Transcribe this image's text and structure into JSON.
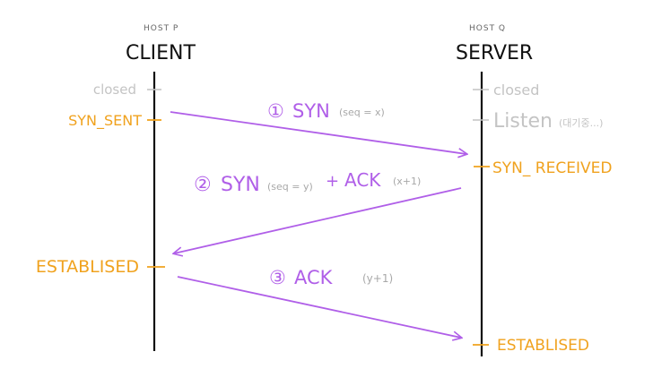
{
  "client": {
    "host": "HOST P",
    "role": "CLIENT"
  },
  "server": {
    "host": "HOST Q",
    "role": "SERVER"
  },
  "states": {
    "client_closed": "closed",
    "client_syn_sent": "SYN_SENT",
    "client_established": "ESTABLISED",
    "server_closed": "closed",
    "server_listen": "Listen",
    "server_listen_note": "(대기중...)",
    "server_syn_received": "SYN_ RECEIVED",
    "server_established": "ESTABLISED"
  },
  "messages": [
    {
      "number": "①",
      "label": "SYN",
      "detail": "(seq = x)"
    },
    {
      "number": "②",
      "label": "SYN",
      "detail_left": "(seq = y)",
      "plus": "+",
      "label2": "ACK",
      "detail": "(x+1)"
    },
    {
      "number": "③",
      "label": "ACK",
      "detail": "(y+1)"
    }
  ],
  "colors": {
    "lifeline": "#111111",
    "state_active": "#f0a21e",
    "state_inactive": "#c4c4c4",
    "message": "#b05fe8"
  }
}
